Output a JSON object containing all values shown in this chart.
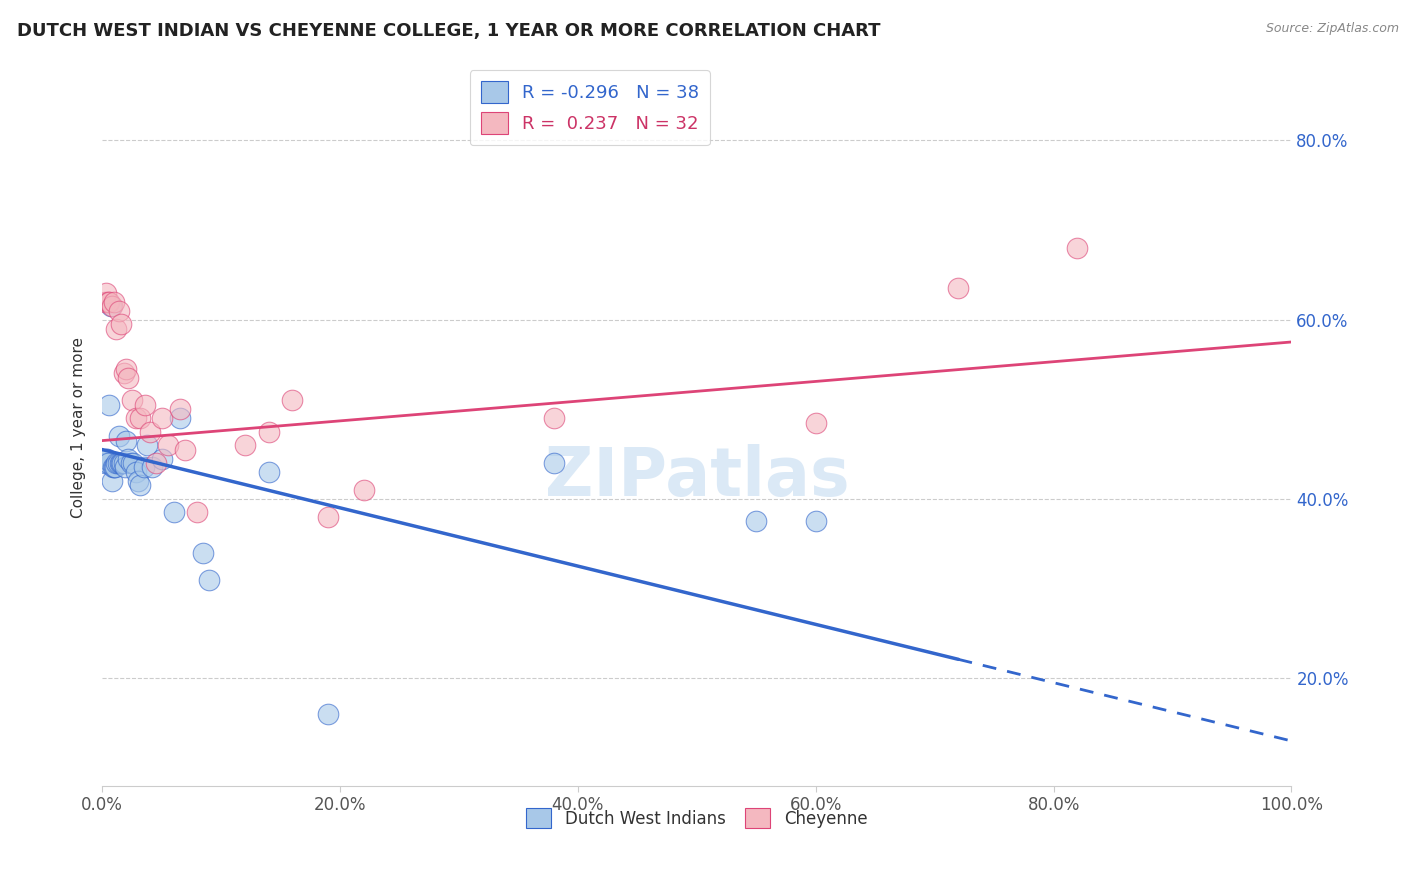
{
  "title": "DUTCH WEST INDIAN VS CHEYENNE COLLEGE, 1 YEAR OR MORE CORRELATION CHART",
  "source": "Source: ZipAtlas.com",
  "ylabel": "College, 1 year or more",
  "legend_labels": [
    "Dutch West Indians",
    "Cheyenne"
  ],
  "blue_R": -0.296,
  "blue_N": 38,
  "pink_R": 0.237,
  "pink_N": 32,
  "blue_color": "#a8c8e8",
  "pink_color": "#f4b8c0",
  "blue_line_color": "#3366cc",
  "pink_line_color": "#dd4477",
  "xlim": [
    0.0,
    1.0
  ],
  "ylim": [
    0.08,
    0.88
  ],
  "xticks": [
    0.0,
    0.2,
    0.4,
    0.6,
    0.8,
    1.0
  ],
  "yticks": [
    0.2,
    0.4,
    0.6,
    0.8
  ],
  "blue_x": [
    0.002,
    0.003,
    0.004,
    0.005,
    0.006,
    0.007,
    0.008,
    0.009,
    0.01,
    0.011,
    0.012,
    0.013,
    0.014,
    0.015,
    0.016,
    0.017,
    0.018,
    0.019,
    0.02,
    0.022,
    0.024,
    0.026,
    0.028,
    0.03,
    0.032,
    0.035,
    0.038,
    0.042,
    0.05,
    0.06,
    0.065,
    0.085,
    0.09,
    0.14,
    0.19,
    0.38,
    0.55,
    0.6
  ],
  "blue_y": [
    0.44,
    0.445,
    0.445,
    0.44,
    0.505,
    0.615,
    0.42,
    0.435,
    0.435,
    0.435,
    0.44,
    0.44,
    0.47,
    0.44,
    0.44,
    0.44,
    0.44,
    0.435,
    0.465,
    0.445,
    0.44,
    0.44,
    0.43,
    0.42,
    0.415,
    0.435,
    0.46,
    0.435,
    0.445,
    0.385,
    0.49,
    0.34,
    0.31,
    0.43,
    0.16,
    0.44,
    0.375,
    0.375
  ],
  "pink_x": [
    0.002,
    0.003,
    0.005,
    0.006,
    0.008,
    0.01,
    0.012,
    0.014,
    0.016,
    0.018,
    0.02,
    0.022,
    0.025,
    0.028,
    0.032,
    0.036,
    0.04,
    0.045,
    0.05,
    0.055,
    0.065,
    0.07,
    0.08,
    0.12,
    0.14,
    0.16,
    0.19,
    0.22,
    0.38,
    0.6,
    0.72,
    0.82
  ],
  "pink_y": [
    0.62,
    0.63,
    0.62,
    0.62,
    0.615,
    0.62,
    0.59,
    0.61,
    0.595,
    0.54,
    0.545,
    0.535,
    0.51,
    0.49,
    0.49,
    0.505,
    0.475,
    0.44,
    0.49,
    0.46,
    0.5,
    0.455,
    0.385,
    0.46,
    0.475,
    0.51,
    0.38,
    0.41,
    0.49,
    0.485,
    0.635,
    0.68
  ],
  "blue_line_start_x": 0.0,
  "blue_line_solid_end_x": 0.72,
  "blue_line_end_x": 1.0,
  "blue_line_start_y": 0.455,
  "blue_line_end_y": 0.13,
  "pink_line_start_x": 0.0,
  "pink_line_end_x": 1.0,
  "pink_line_start_y": 0.465,
  "pink_line_end_y": 0.575,
  "watermark": "ZIPatlas",
  "background_color": "#ffffff",
  "grid_color": "#cccccc"
}
